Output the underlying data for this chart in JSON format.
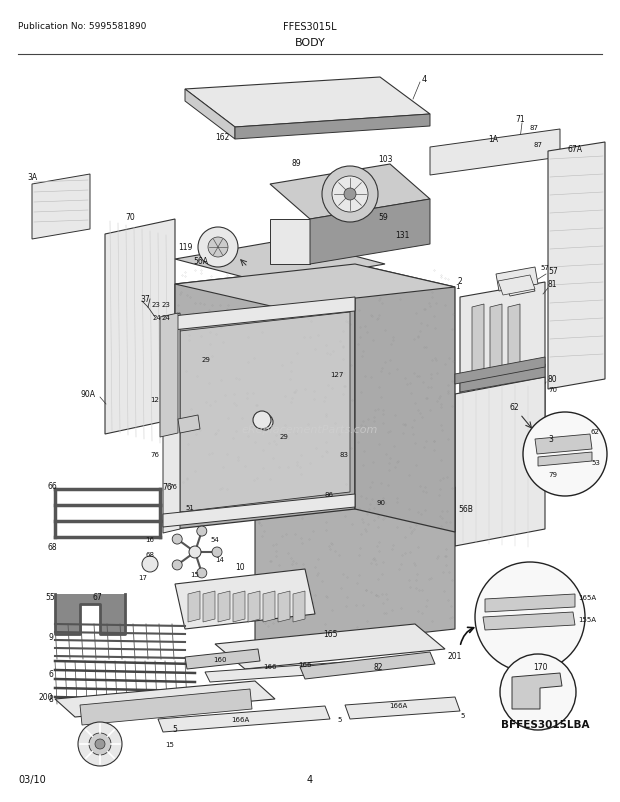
{
  "title_left": "Publication No: 5995581890",
  "title_center": "FFES3015L",
  "title_section": "BODY",
  "footer_left": "03/10",
  "footer_center": "4",
  "footer_right": "BFFES3015LBA",
  "bg_color": "#ffffff",
  "text_color": "#111111",
  "fig_width": 6.2,
  "fig_height": 8.03,
  "dpi": 100,
  "watermark": "eReplacementParts.com",
  "gray_light": "#e8e8e8",
  "gray_mid": "#cccccc",
  "gray_dark": "#999999",
  "gray_body": "#b0b0b0",
  "edge_color": "#333333"
}
